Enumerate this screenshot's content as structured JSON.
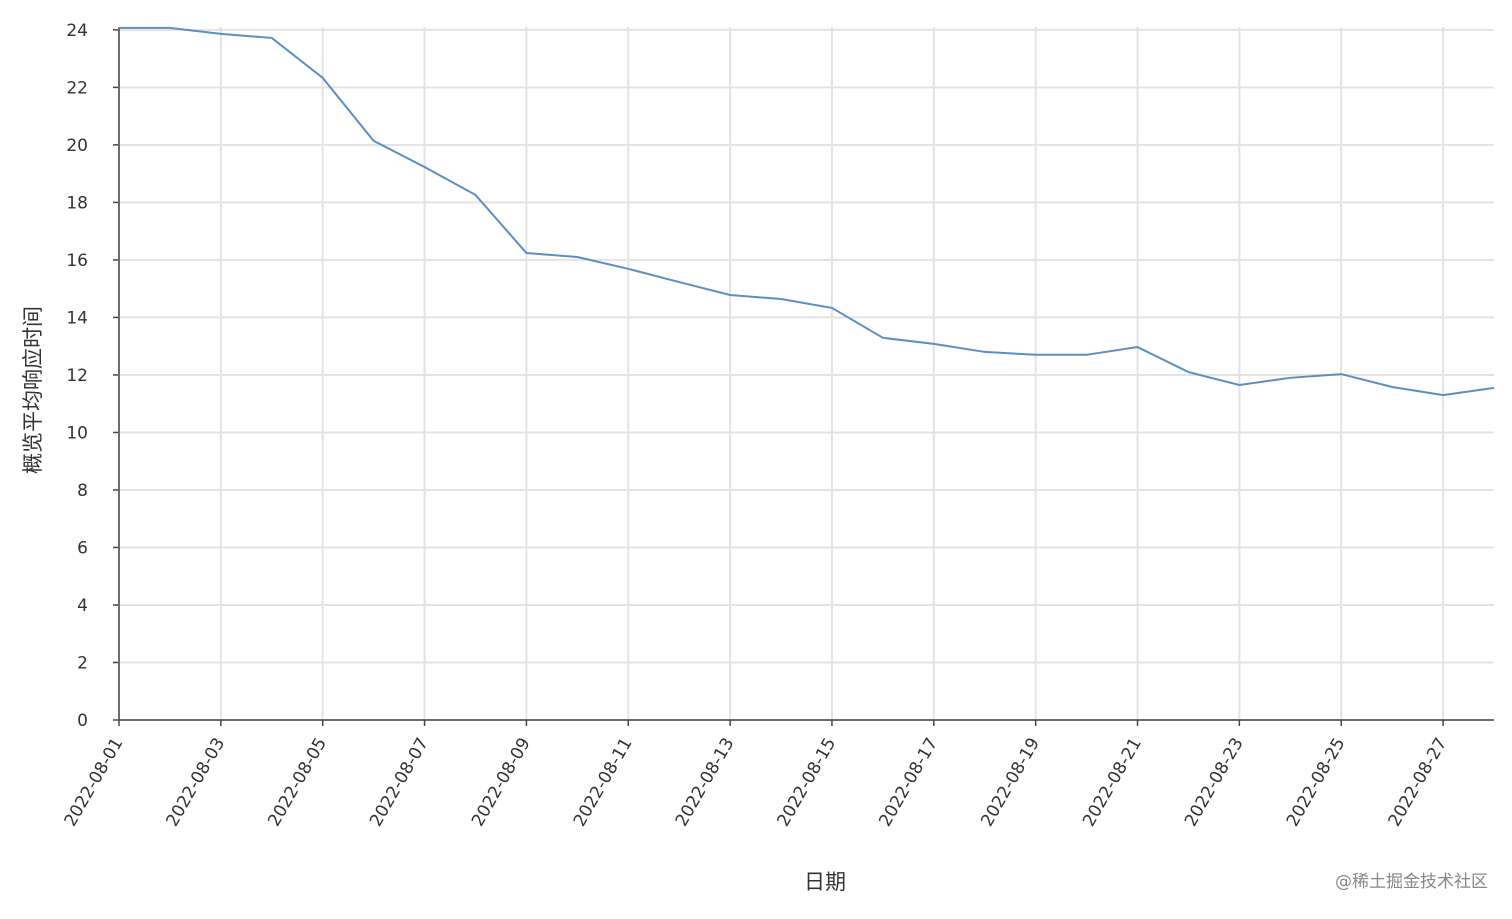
{
  "chart_data": {
    "type": "line",
    "x_label": "日期",
    "y_label": "概览平均响应时间",
    "watermark": "@稀土掘金技术社区",
    "categories": [
      "2022-08-01",
      null,
      "2022-08-03",
      null,
      "2022-08-05",
      null,
      "2022-08-07",
      null,
      "2022-08-09",
      null,
      "2022-08-11",
      null,
      "2022-08-13",
      null,
      "2022-08-15",
      null,
      "2022-08-17",
      null,
      "2022-08-19",
      null,
      "2022-08-21",
      null,
      "2022-08-23",
      null,
      "2022-08-25",
      null,
      "2022-08-27",
      null
    ],
    "series": [
      {
        "name": "概览平均响应时间",
        "color": "#5b8ec2",
        "values": [
          24.07,
          24.07,
          23.86,
          23.72,
          22.33,
          20.14,
          19.23,
          18.26,
          16.24,
          16.1,
          15.69,
          15.23,
          14.78,
          14.64,
          14.33,
          13.29,
          13.08,
          12.8,
          12.7,
          12.7,
          12.97,
          12.1,
          11.65,
          11.9,
          12.03,
          11.58,
          11.3,
          11.55
        ]
      }
    ],
    "ylim": [
      0,
      24.1
    ],
    "yticks": [
      0,
      2,
      4,
      6,
      8,
      10,
      12,
      14,
      16,
      18,
      20,
      22,
      24
    ],
    "grid": true
  }
}
